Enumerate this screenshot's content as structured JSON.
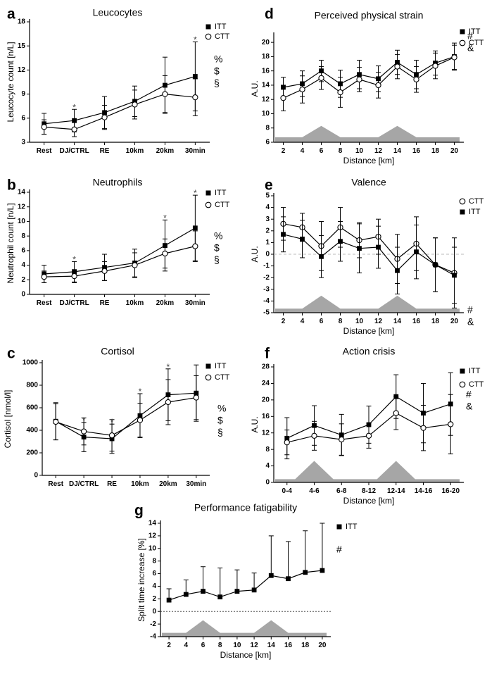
{
  "chart_data": [
    {
      "id": "a",
      "panel_label": "a",
      "type": "line",
      "title": "Leucocytes",
      "xlabel": "",
      "ylabel": "Leucocyte count [n/L]",
      "categories": [
        "Rest",
        "DJ/CTRL",
        "RE",
        "10km",
        "20km",
        "30min"
      ],
      "ylim": [
        3,
        18
      ],
      "yticks": [
        "3",
        "6",
        "9",
        "12",
        "15",
        "18"
      ],
      "legend": "top-right",
      "series": [
        {
          "name": "ITT",
          "marker": "square",
          "values": [
            5.3,
            5.7,
            6.7,
            8.1,
            10.1,
            11.2
          ],
          "err_up": [
            1.3,
            1.4,
            2.0,
            1.9,
            3.5,
            4.3
          ],
          "err_down": [
            1.3,
            1.4,
            2.0,
            1.9,
            3.5,
            4.3
          ]
        },
        {
          "name": "CTT",
          "marker": "circle",
          "values": [
            4.9,
            4.6,
            6.1,
            7.7,
            9.0,
            8.6
          ],
          "err_up": [
            0.9,
            0.9,
            1.5,
            1.8,
            2.3,
            2.3
          ],
          "err_down": [
            0.9,
            0.9,
            1.5,
            1.8,
            2.3,
            2.3
          ]
        }
      ],
      "star_indices": [
        1,
        5
      ],
      "side_symbols": [
        "%",
        "$",
        "§"
      ]
    },
    {
      "id": "b",
      "panel_label": "b",
      "type": "line",
      "title": "Neutrophils",
      "xlabel": "",
      "ylabel": "Neutrophil count [n/L]",
      "categories": [
        "Rest",
        "DJ/CTRL",
        "RE",
        "10km",
        "20km",
        "30min"
      ],
      "ylim": [
        0,
        14
      ],
      "yticks": [
        "0",
        "2",
        "4",
        "6",
        "8",
        "10",
        "12",
        "14"
      ],
      "legend": "top-right",
      "series": [
        {
          "name": "ITT",
          "marker": "square",
          "values": [
            2.8,
            3.1,
            3.7,
            4.3,
            6.7,
            9.1
          ],
          "err_up": [
            1.2,
            1.4,
            1.8,
            1.9,
            3.5,
            4.5
          ],
          "err_down": [
            1.2,
            1.4,
            1.8,
            1.9,
            3.5,
            4.5
          ]
        },
        {
          "name": "CTT",
          "marker": "circle",
          "values": [
            2.4,
            2.5,
            3.2,
            4.0,
            5.6,
            6.6
          ],
          "err_up": [
            0.8,
            0.9,
            1.3,
            1.7,
            2.0,
            2.1
          ],
          "err_down": [
            0.8,
            0.9,
            1.3,
            1.7,
            2.0,
            2.1
          ]
        }
      ],
      "star_indices": [
        1,
        4,
        5
      ],
      "side_symbols": [
        "%",
        "$",
        "§"
      ]
    },
    {
      "id": "c",
      "panel_label": "c",
      "type": "line",
      "title": "Cortisol",
      "xlabel": "",
      "ylabel": "Cortisol [nmol/l]",
      "categories": [
        "Rest",
        "DJ/CTRL",
        "RE",
        "10km",
        "20km",
        "30min"
      ],
      "ylim": [
        0,
        1000
      ],
      "yticks": [
        "0",
        "200",
        "400",
        "600",
        "800",
        "1000"
      ],
      "legend": "top-right",
      "series": [
        {
          "name": "ITT",
          "marker": "square",
          "values": [
            480,
            340,
            325,
            530,
            715,
            730
          ],
          "err_up": [
            165,
            130,
            130,
            195,
            230,
            250
          ],
          "err_down": [
            165,
            130,
            130,
            195,
            230,
            250
          ]
        },
        {
          "name": "CTT",
          "marker": "circle",
          "values": [
            475,
            390,
            355,
            490,
            650,
            690
          ],
          "err_up": [
            160,
            120,
            140,
            150,
            200,
            195
          ],
          "err_down": [
            160,
            120,
            140,
            150,
            200,
            195
          ]
        }
      ],
      "star_indices": [
        1,
        2,
        3,
        4
      ],
      "side_symbols": [
        "%",
        "$",
        "§"
      ]
    },
    {
      "id": "d",
      "panel_label": "d",
      "type": "line",
      "title": "Perceived physical strain",
      "xlabel": "Distance [km]",
      "ylabel": "A.U.",
      "x": [
        2,
        4,
        6,
        8,
        10,
        12,
        14,
        16,
        18,
        20
      ],
      "xlim": [
        1,
        21
      ],
      "xticks": [
        "2",
        "4",
        "6",
        "8",
        "10",
        "12",
        "14",
        "16",
        "18",
        "20"
      ],
      "ylim": [
        6,
        21
      ],
      "yticks": [
        "6",
        "8",
        "10",
        "12",
        "14",
        "16",
        "18",
        "20"
      ],
      "legend": "top-right",
      "series": [
        {
          "name": "ITT",
          "marker": "square",
          "values": [
            13.7,
            14.2,
            16.0,
            14.2,
            15.5,
            14.9,
            17.2,
            15.5,
            17.1,
            18.0
          ],
          "err_up": [
            1.4,
            1.8,
            1.5,
            1.9,
            2.0,
            1.8,
            1.7,
            2.0,
            1.7,
            1.9
          ],
          "err_down": [
            1.4,
            1.8,
            1.5,
            1.9,
            2.0,
            1.8,
            1.7,
            2.0,
            1.7,
            1.9
          ]
        },
        {
          "name": "CTT",
          "marker": "circle",
          "values": [
            12.2,
            13.4,
            15.0,
            13.0,
            14.8,
            14.0,
            16.6,
            14.8,
            16.7,
            17.9
          ],
          "err_up": [
            1.8,
            1.9,
            1.6,
            2.1,
            1.7,
            1.8,
            1.7,
            1.8,
            1.8,
            1.7
          ],
          "err_down": [
            1.8,
            1.9,
            1.6,
            2.1,
            1.7,
            1.8,
            1.7,
            1.8,
            1.8,
            1.7
          ]
        }
      ],
      "side_symbols": [
        "#",
        "&"
      ],
      "intensity_profile": {
        "x": [
          1,
          4,
          6,
          8,
          12,
          14,
          16,
          21
        ],
        "y": [
          6.7,
          6.7,
          8.3,
          6.7,
          6.7,
          8.3,
          6.7,
          6.7
        ]
      }
    },
    {
      "id": "e",
      "panel_label": "e",
      "type": "line",
      "title": "Valence",
      "xlabel": "Distance [km]",
      "ylabel": "A.U.",
      "x": [
        2,
        4,
        6,
        8,
        10,
        12,
        14,
        16,
        18,
        20
      ],
      "xlim": [
        1,
        21
      ],
      "xticks": [
        "2",
        "4",
        "6",
        "8",
        "10",
        "12",
        "14",
        "16",
        "18",
        "20"
      ],
      "ylim": [
        -5,
        5
      ],
      "yticks": [
        "-5",
        "-4",
        "-3",
        "-2",
        "-1",
        "0",
        "1",
        "2",
        "3",
        "4",
        "5"
      ],
      "legend": "top-right",
      "zero_line": true,
      "series": [
        {
          "name": "CTT",
          "marker": "circle",
          "values": [
            2.6,
            2.3,
            0.7,
            2.3,
            1.2,
            1.5,
            -0.4,
            0.9,
            -0.9,
            -1.6
          ],
          "err_up": [
            1.4,
            1.2,
            2.1,
            1.7,
            1.5,
            1.5,
            2.1,
            2.3,
            2.3,
            3.0
          ],
          "err_down": [
            1.4,
            1.2,
            2.1,
            1.7,
            1.5,
            1.5,
            2.1,
            2.3,
            2.3,
            3.0
          ]
        },
        {
          "name": "ITT",
          "marker": "square",
          "values": [
            1.7,
            1.3,
            -0.2,
            1.1,
            0.5,
            0.6,
            -1.4,
            0.2,
            -0.9,
            -1.8
          ],
          "err_up": [
            1.5,
            1.6,
            1.8,
            1.7,
            2.1,
            1.8,
            2.0,
            2.3,
            2.3,
            2.4
          ],
          "err_down": [
            1.5,
            1.6,
            1.8,
            1.7,
            2.1,
            1.8,
            2.0,
            2.3,
            2.3,
            2.4
          ]
        }
      ],
      "side_symbols": [
        "#",
        "&"
      ],
      "intensity_profile": {
        "x": [
          1,
          4,
          6,
          8,
          12,
          14,
          16,
          21
        ],
        "y": [
          -4.65,
          -4.65,
          -3.55,
          -4.65,
          -4.65,
          -3.55,
          -4.65,
          -4.65
        ]
      }
    },
    {
      "id": "f",
      "panel_label": "f",
      "type": "line",
      "title": "Action crisis",
      "xlabel": "Distance [km]",
      "ylabel": "A.U.",
      "categories": [
        "0-4",
        "4-6",
        "6-8",
        "8-12",
        "12-14",
        "14-16",
        "16-20"
      ],
      "ylim": [
        0,
        28
      ],
      "yticks": [
        "0",
        "4",
        "8",
        "12",
        "16",
        "20",
        "24",
        "28"
      ],
      "legend": "top-right",
      "series": [
        {
          "name": "ITT",
          "marker": "square",
          "values": [
            10.7,
            13.8,
            11.5,
            14.0,
            20.8,
            16.8,
            19.0
          ],
          "err_up": [
            5.0,
            4.8,
            5.0,
            4.5,
            5.3,
            7.2,
            7.6
          ],
          "err_down": [
            5.0,
            4.8,
            5.0,
            4.5,
            5.3,
            7.2,
            7.6
          ]
        },
        {
          "name": "CTT",
          "marker": "circle",
          "values": [
            9.7,
            11.3,
            10.4,
            11.3,
            16.8,
            13.2,
            14.1
          ],
          "err_up": [
            3.0,
            3.5,
            3.8,
            3.0,
            4.0,
            5.5,
            7.2
          ],
          "err_down": [
            3.0,
            3.5,
            3.8,
            3.0,
            4.0,
            5.5,
            7.2
          ]
        }
      ],
      "side_symbols": [
        "#",
        "&"
      ],
      "intensity_profile": {
        "x": [
          -0.5,
          0.3,
          1.0,
          1.7,
          3.3,
          4.0,
          4.7,
          6.5
        ],
        "y": [
          0.8,
          0.8,
          5.2,
          0.8,
          0.8,
          5.2,
          0.8,
          0.8
        ]
      }
    },
    {
      "id": "g",
      "panel_label": "g",
      "type": "line",
      "title": "Performance fatigability",
      "xlabel": "Distance [km]",
      "ylabel": "Split time increase [%]",
      "x": [
        2,
        4,
        6,
        8,
        10,
        12,
        14,
        16,
        18,
        20
      ],
      "xlim": [
        1,
        21
      ],
      "xticks": [
        "2",
        "4",
        "6",
        "8",
        "10",
        "12",
        "14",
        "16",
        "18",
        "20"
      ],
      "ylim": [
        -4,
        14
      ],
      "yticks": [
        "-4",
        "-2",
        "0",
        "2",
        "4",
        "6",
        "8",
        "10",
        "12",
        "14"
      ],
      "legend": "top-right",
      "zero_line": true,
      "series": [
        {
          "name": "ITT",
          "marker": "square",
          "values": [
            1.8,
            2.7,
            3.2,
            2.3,
            3.2,
            3.4,
            5.7,
            5.2,
            6.2,
            6.5
          ],
          "err_up": [
            1.8,
            2.3,
            3.9,
            4.6,
            3.4,
            2.7,
            6.3,
            5.9,
            6.6,
            7.5
          ],
          "err_down": [
            0,
            0,
            0,
            0,
            0,
            0,
            0,
            0,
            0,
            0
          ]
        }
      ],
      "side_symbols": [
        "#"
      ],
      "intensity_profile": {
        "x": [
          1,
          4,
          6,
          8,
          12,
          14,
          16,
          21
        ],
        "y": [
          -3.4,
          -3.4,
          -1.4,
          -3.4,
          -3.4,
          -1.4,
          -3.4,
          -3.4
        ]
      }
    }
  ]
}
